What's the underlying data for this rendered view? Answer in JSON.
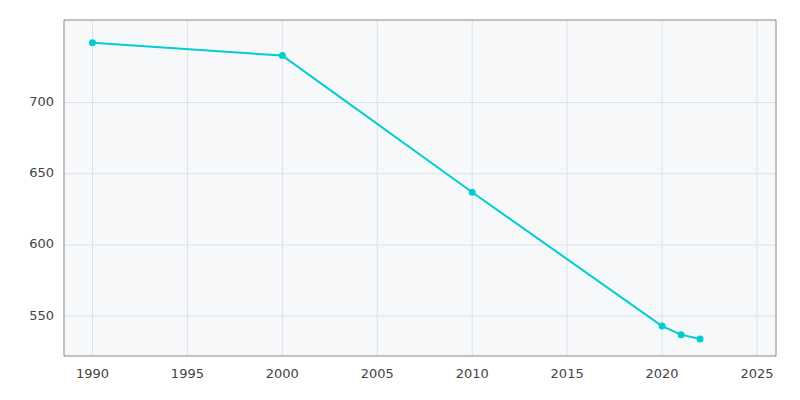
{
  "chart_data": {
    "type": "line",
    "x": [
      1990,
      2000,
      2010,
      2020,
      2021,
      2022
    ],
    "values": [
      742,
      733,
      637,
      543,
      537,
      534
    ],
    "color": "#00CED1",
    "marker": "circle",
    "xlim": [
      1988.5,
      2026
    ],
    "ylim": [
      522,
      758
    ],
    "xticks": [
      1990,
      1995,
      2000,
      2005,
      2010,
      2015,
      2020,
      2025
    ],
    "yticks": [
      550,
      600,
      650,
      700
    ],
    "grid": true
  }
}
